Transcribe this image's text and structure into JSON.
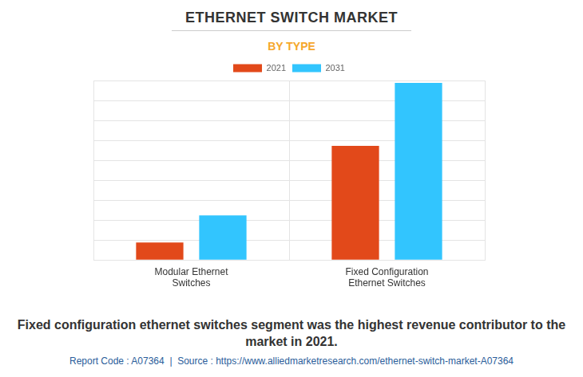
{
  "chart_data": {
    "type": "bar",
    "title": "ETHERNET SWITCH MARKET",
    "subtitle": "BY TYPE",
    "categories": [
      "Modular Ethernet Switches",
      "Fixed Configuration Ethernet Switches"
    ],
    "series": [
      {
        "name": "2021",
        "color": "#e2491a",
        "values": [
          0.88,
          5.72
        ]
      },
      {
        "name": "2031",
        "color": "#32c5fe",
        "values": [
          2.24,
          8.88
        ]
      }
    ],
    "ylim": [
      0,
      9
    ],
    "yticks": [
      0,
      1,
      2,
      3,
      4,
      5,
      6,
      7,
      8,
      9
    ],
    "grid": true,
    "legend": "top",
    "tick_labels": "x",
    "caption": "Fixed configuration ethernet switches segment was the highest revenue contributor to the market in 2021.",
    "source": "Report Code : A07364  |  Source : https://www.alliedmarketresearch.com/ethernet-switch-market-A07364"
  }
}
